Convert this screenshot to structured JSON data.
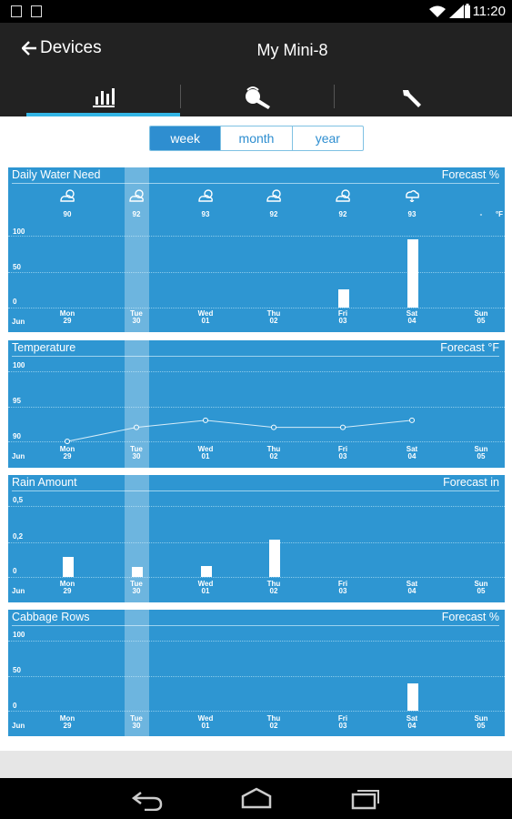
{
  "status": {
    "time": "11:20"
  },
  "actionbar": {
    "back_label": "Devices",
    "title": "My Mini-8"
  },
  "tabs": [
    {
      "icon": "bar-chart-icon"
    },
    {
      "icon": "watering-can-icon"
    },
    {
      "icon": "wrench-icon"
    }
  ],
  "range": {
    "options": [
      "week",
      "month",
      "year"
    ],
    "selected": "week"
  },
  "month_label": "Jun",
  "days": [
    {
      "name": "Mon",
      "date": "29"
    },
    {
      "name": "Tue",
      "date": "30"
    },
    {
      "name": "Wed",
      "date": "01"
    },
    {
      "name": "Thu",
      "date": "02"
    },
    {
      "name": "Fri",
      "date": "03"
    },
    {
      "name": "Sat",
      "date": "04"
    },
    {
      "name": "Sun",
      "date": "05"
    }
  ],
  "forecast": {
    "temps": [
      "90",
      "92",
      "93",
      "92",
      "92",
      "93",
      "-"
    ],
    "unit": "°F",
    "icons": [
      "partly-cloudy-icon",
      "partly-cloudy-icon",
      "partly-cloudy-icon",
      "partly-cloudy-icon",
      "partly-cloudy-icon",
      "rain-cloud-icon",
      ""
    ]
  },
  "chart_data": [
    {
      "type": "bar",
      "title": "Daily Water Need",
      "unit_label": "Forecast  %",
      "categories": [
        "Mon 29",
        "Tue 30",
        "Wed 01",
        "Thu 02",
        "Fri 03",
        "Sat 04",
        "Sun 05"
      ],
      "values": [
        0,
        0,
        0,
        0,
        25,
        95,
        0
      ],
      "yticks": [
        "100",
        "50",
        "0"
      ],
      "ylim": [
        0,
        100
      ]
    },
    {
      "type": "line",
      "title": "Temperature",
      "unit_label": "Forecast  °F",
      "categories": [
        "Mon 29",
        "Tue 30",
        "Wed 01",
        "Thu 02",
        "Fri 03",
        "Sat 04",
        "Sun 05"
      ],
      "values": [
        90,
        92,
        93,
        92,
        92,
        93,
        null
      ],
      "yticks": [
        "100",
        "95",
        "90"
      ],
      "ylim": [
        90,
        100
      ]
    },
    {
      "type": "bar",
      "title": "Rain Amount",
      "unit_label": "Forecast  in",
      "categories": [
        "Mon 29",
        "Tue 30",
        "Wed 01",
        "Thu 02",
        "Fri 03",
        "Sat 04",
        "Sun 05"
      ],
      "values": [
        0.14,
        0.07,
        0.08,
        0.26,
        0,
        0,
        0
      ],
      "yticks": [
        "0,5",
        "0,2",
        "0"
      ],
      "ylim": [
        0,
        0.5
      ]
    },
    {
      "type": "bar",
      "title": "Cabbage Rows",
      "unit_label": "Forecast  %",
      "categories": [
        "Mon 29",
        "Tue 30",
        "Wed 01",
        "Thu 02",
        "Fri 03",
        "Sat 04",
        "Sun 05"
      ],
      "values": [
        0,
        0,
        0,
        0,
        0,
        38,
        0
      ],
      "yticks": [
        "100",
        "50",
        "0"
      ],
      "ylim": [
        0,
        100
      ]
    }
  ]
}
